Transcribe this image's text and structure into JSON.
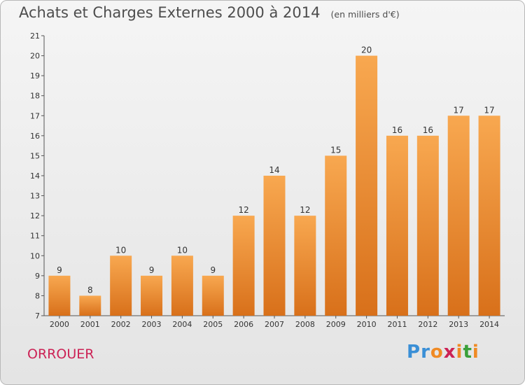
{
  "title": "Achats et Charges Externes 2000 à 2014",
  "unit": "(en milliers d'€)",
  "commune": "ORROUER",
  "logo": {
    "text": "Proxiti",
    "letter_colors": [
      "#3a8fd6",
      "#3a8fd6",
      "#f08a24",
      "#cc2255",
      "#f08a24",
      "#3aa03a",
      "#f08a24"
    ]
  },
  "colors": {
    "bar_light": "#f8a850",
    "bar_dark": "#d8701a",
    "commune_text": "#cc2255",
    "axis": "#555555"
  },
  "chart_data": {
    "type": "bar",
    "title": "Achats et Charges Externes 2000 à 2014",
    "categories": [
      "2000",
      "2001",
      "2002",
      "2003",
      "2004",
      "2005",
      "2006",
      "2007",
      "2008",
      "2009",
      "2010",
      "2011",
      "2012",
      "2013",
      "2014"
    ],
    "values": [
      9,
      8,
      10,
      9,
      10,
      9,
      12,
      14,
      12,
      15,
      20,
      16,
      16,
      17,
      17
    ],
    "ylim": [
      7,
      21
    ],
    "yticks": [
      7,
      8,
      9,
      10,
      11,
      12,
      13,
      14,
      15,
      16,
      17,
      18,
      19,
      20,
      21
    ],
    "grid": false,
    "data_labels": true
  }
}
